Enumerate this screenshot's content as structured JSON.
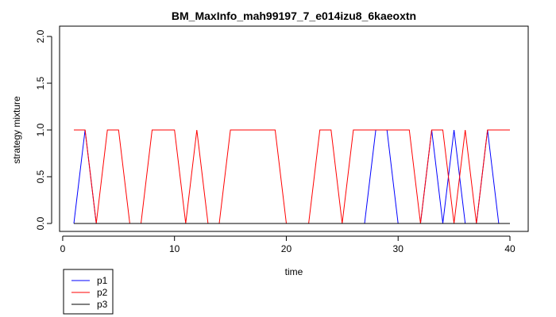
{
  "chart_data": {
    "type": "line",
    "title": "BM_MaxInfo_mah99197_7_e014izu8_6kaeoxtn",
    "xlabel": "time",
    "ylabel": "strategy mixture",
    "xlim": [
      1,
      40
    ],
    "ylim": [
      0,
      2
    ],
    "x_ticks": [
      0,
      10,
      20,
      30,
      40
    ],
    "y_ticks": [
      0,
      0.5,
      1,
      1.5,
      2
    ],
    "x_tick_labels": [
      "0",
      "10",
      "20",
      "30",
      "40"
    ],
    "y_tick_labels": [
      "0.0",
      "0.5",
      "1.0",
      "1.5",
      "2.0"
    ],
    "grid": false,
    "legend_position": "bottom-left, below plot",
    "x": [
      1,
      2,
      3,
      4,
      5,
      6,
      7,
      8,
      9,
      10,
      11,
      12,
      13,
      14,
      15,
      16,
      17,
      18,
      19,
      20,
      21,
      22,
      23,
      24,
      25,
      26,
      27,
      28,
      29,
      30,
      31,
      32,
      33,
      34,
      35,
      36,
      37,
      38,
      39,
      40
    ],
    "series": [
      {
        "name": "p1",
        "color": "#0000ff",
        "values": [
          0,
          1,
          0,
          0,
          0,
          0,
          0,
          0,
          0,
          0,
          0,
          0,
          0,
          0,
          0,
          0,
          0,
          0,
          0,
          0,
          0,
          0,
          0,
          0,
          0,
          0,
          0,
          1,
          1,
          0,
          0,
          0,
          1,
          0,
          1,
          0,
          0,
          1,
          0,
          0
        ]
      },
      {
        "name": "p2",
        "color": "#ff0000",
        "values": [
          1,
          1,
          0,
          1,
          1,
          0,
          0,
          1,
          1,
          1,
          0,
          1,
          0,
          0,
          1,
          1,
          1,
          1,
          1,
          0,
          0,
          0,
          1,
          1,
          0,
          1,
          1,
          1,
          1,
          1,
          1,
          0,
          1,
          1,
          0,
          1,
          0,
          1,
          1,
          1
        ]
      },
      {
        "name": "p3",
        "color": "#000000",
        "values": [
          0,
          0,
          0,
          0,
          0,
          0,
          0,
          0,
          0,
          0,
          0,
          0,
          0,
          0,
          0,
          0,
          0,
          0,
          0,
          0,
          0,
          0,
          0,
          0,
          0,
          0,
          0,
          0,
          0,
          0,
          0,
          0,
          0,
          0,
          0,
          0,
          0,
          0,
          0,
          0
        ]
      }
    ]
  }
}
